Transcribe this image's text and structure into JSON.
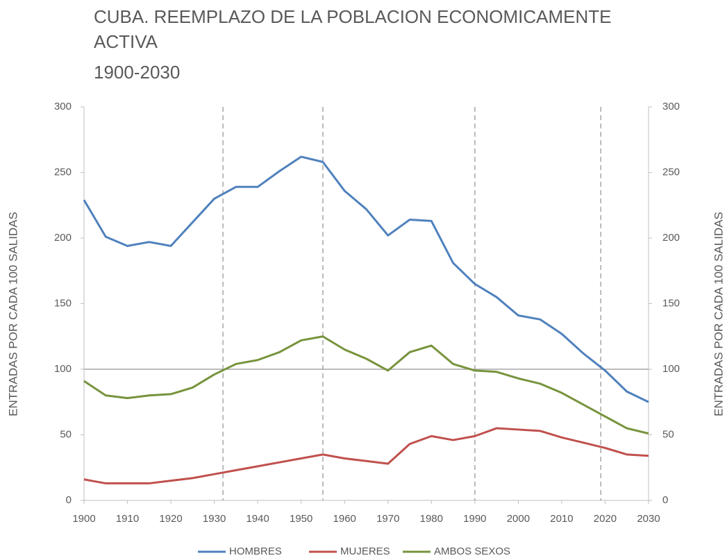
{
  "chart_data": {
    "type": "line",
    "title": "CUBA. REEMPLAZO DE LA POBLACION ECONOMICAMENTE ACTIVA",
    "subtitle": "1900-2030",
    "ylabel": "ENTRADAS POR CADA 100 SALIDAS",
    "y2label": "ENTRADAS POR CADA 100 SALIDAS",
    "x": [
      1900,
      1905,
      1910,
      1915,
      1920,
      1925,
      1930,
      1935,
      1940,
      1945,
      1950,
      1955,
      1960,
      1965,
      1970,
      1975,
      1980,
      1985,
      1990,
      1995,
      2000,
      2005,
      2010,
      2015,
      2020,
      2025,
      2030
    ],
    "series": [
      {
        "name": "HOMBRES",
        "color": "#4f81bd",
        "values": [
          229,
          201,
          194,
          197,
          194,
          212,
          230,
          239,
          239,
          251,
          262,
          258,
          236,
          222,
          202,
          214,
          213,
          181,
          165,
          155,
          141,
          138,
          127,
          112,
          99,
          83,
          75
        ]
      },
      {
        "name": "MUJERES",
        "color": "#c0504d",
        "values": [
          16,
          13,
          13,
          13,
          15,
          17,
          20,
          23,
          26,
          29,
          32,
          35,
          32,
          30,
          28,
          43,
          49,
          46,
          49,
          55,
          54,
          53,
          48,
          44,
          40,
          35,
          34
        ]
      },
      {
        "name": "AMBOS SEXOS",
        "color": "#77933c",
        "values": [
          91,
          80,
          78,
          80,
          81,
          86,
          96,
          104,
          107,
          113,
          122,
          125,
          115,
          108,
          99,
          113,
          118,
          104,
          99,
          98,
          93,
          89,
          82,
          73,
          64,
          55,
          51
        ]
      }
    ],
    "xlim": [
      1900,
      2030
    ],
    "xticks": [
      1900,
      1910,
      1920,
      1930,
      1940,
      1950,
      1960,
      1970,
      1980,
      1990,
      2000,
      2010,
      2020,
      2030
    ],
    "ylim": [
      0,
      300
    ],
    "yticks": [
      0,
      50,
      100,
      150,
      200,
      250,
      300
    ],
    "y2lim": [
      0,
      300
    ],
    "y2ticks": [
      0,
      50,
      100,
      150,
      200,
      250,
      300
    ],
    "reference_x": [
      1932,
      1955,
      1990,
      2019
    ],
    "reference_y": 100,
    "legend": "bottom"
  }
}
